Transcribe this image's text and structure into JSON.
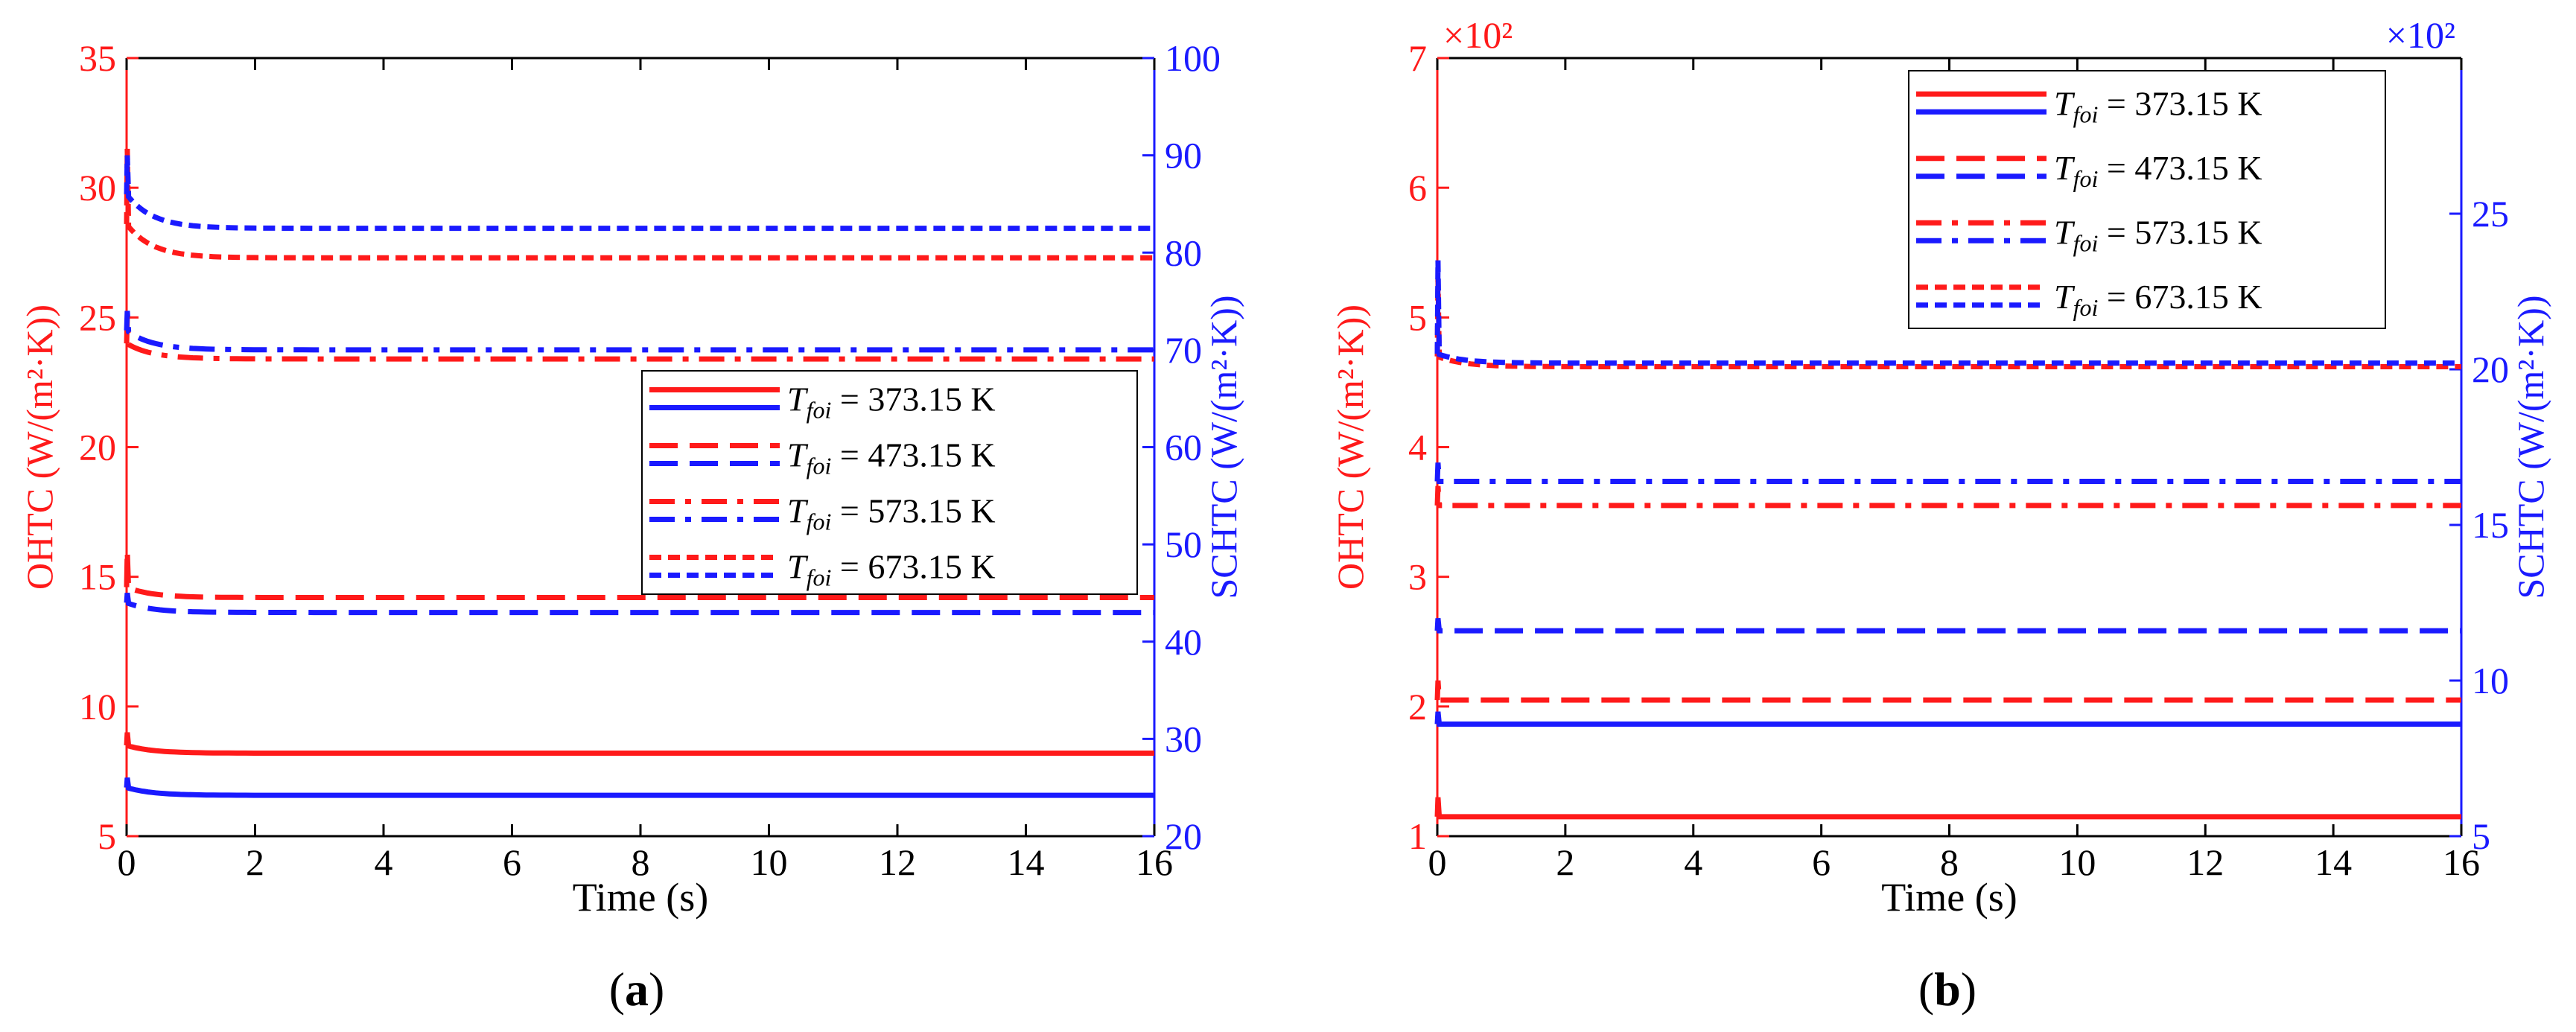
{
  "colors": {
    "red": "#ff1a1a",
    "blue": "#1a1aff",
    "axis": "#000000"
  },
  "chart_data": [
    {
      "type": "line",
      "panel_label": "a",
      "xlabel": "Time (s)",
      "ylabel_left": "OHTC (W/(m²·K))",
      "ylabel_right": "SCHTC (W/(m²·K))",
      "xlim": [
        0,
        16
      ],
      "ylim_left": [
        5,
        35
      ],
      "ylim_right": [
        20,
        100
      ],
      "x_ticks": [
        "0",
        "2",
        "4",
        "6",
        "8",
        "10",
        "12",
        "14",
        "16"
      ],
      "y_left_ticks": [
        "5",
        "10",
        "15",
        "20",
        "25",
        "30",
        "35"
      ],
      "y_right_ticks": [
        "20",
        "30",
        "40",
        "50",
        "60",
        "70",
        "80",
        "90",
        "100"
      ],
      "y_left_multiplier": "",
      "y_right_multiplier": "",
      "legend": {
        "placement": "center-right",
        "entries": [
          {
            "prefix": "T",
            "sub": "foi",
            "rest": " = 373.15 K",
            "dash": "solid"
          },
          {
            "prefix": "T",
            "sub": "foi",
            "rest": " = 473.15 K",
            "dash": "dash"
          },
          {
            "prefix": "T",
            "sub": "foi",
            "rest": " = 573.15 K",
            "dash": "dashdot"
          },
          {
            "prefix": "T",
            "sub": "foi",
            "rest": " = 673.15 K",
            "dash": "dot"
          }
        ]
      },
      "series": [
        {
          "legend_index": 0,
          "color": "red",
          "axis": "left",
          "dash": "solid",
          "start": 8.5,
          "steady": 8.2,
          "peak": 9.0
        },
        {
          "legend_index": 0,
          "color": "blue",
          "axis": "right",
          "dash": "solid",
          "start": 25,
          "steady": 24.2,
          "peak": 26
        },
        {
          "legend_index": 1,
          "color": "red",
          "axis": "left",
          "dash": "dash",
          "start": 14.6,
          "steady": 14.2,
          "peak": 16
        },
        {
          "legend_index": 1,
          "color": "blue",
          "axis": "right",
          "dash": "dash",
          "start": 44,
          "steady": 43,
          "peak": 45
        },
        {
          "legend_index": 2,
          "color": "red",
          "axis": "left",
          "dash": "dashdot",
          "start": 24.0,
          "steady": 23.4,
          "peak": 25
        },
        {
          "legend_index": 2,
          "color": "blue",
          "axis": "right",
          "dash": "dashdot",
          "start": 72,
          "steady": 70,
          "peak": 74
        },
        {
          "legend_index": 3,
          "color": "red",
          "axis": "left",
          "dash": "dot",
          "start": 28.6,
          "steady": 27.3,
          "peak": 31.5
        },
        {
          "legend_index": 3,
          "color": "blue",
          "axis": "right",
          "dash": "dot",
          "start": 86,
          "steady": 82.5,
          "peak": 90
        }
      ]
    },
    {
      "type": "line",
      "panel_label": "b",
      "xlabel": "Time (s)",
      "ylabel_left": "OHTC (W/(m²·K))",
      "ylabel_right": "SCHTC (W/(m²·K))",
      "xlim": [
        0,
        16
      ],
      "ylim_left": [
        1,
        7
      ],
      "ylim_right": [
        5,
        30
      ],
      "x_ticks": [
        "0",
        "2",
        "4",
        "6",
        "8",
        "10",
        "12",
        "14",
        "16"
      ],
      "y_left_ticks": [
        "1",
        "2",
        "3",
        "4",
        "5",
        "6",
        "7"
      ],
      "y_right_ticks": [
        "5",
        "10",
        "15",
        "20",
        "25"
      ],
      "y_left_multiplier": "×10²",
      "y_right_multiplier": "×10²",
      "legend": {
        "placement": "top-right",
        "entries": [
          {
            "prefix": "T",
            "sub": "foi",
            "rest": " = 373.15 K",
            "dash": "solid"
          },
          {
            "prefix": "T",
            "sub": "foi",
            "rest": " = 473.15 K",
            "dash": "dash"
          },
          {
            "prefix": "T",
            "sub": "foi",
            "rest": " = 573.15 K",
            "dash": "dashdot"
          },
          {
            "prefix": "T",
            "sub": "foi",
            "rest": " = 673.15 K",
            "dash": "dot"
          }
        ]
      },
      "series": [
        {
          "legend_index": 0,
          "color": "red",
          "axis": "left",
          "dash": "solid",
          "start": 1.15,
          "steady": 1.15,
          "peak": 1.3
        },
        {
          "legend_index": 0,
          "color": "blue",
          "axis": "right",
          "dash": "solid",
          "start": 8.6,
          "steady": 8.6,
          "peak": 9.0
        },
        {
          "legend_index": 1,
          "color": "red",
          "axis": "left",
          "dash": "dash",
          "start": 2.05,
          "steady": 2.05,
          "peak": 2.2
        },
        {
          "legend_index": 1,
          "color": "blue",
          "axis": "right",
          "dash": "dash",
          "start": 11.6,
          "steady": 11.6,
          "peak": 12.0
        },
        {
          "legend_index": 2,
          "color": "red",
          "axis": "left",
          "dash": "dashdot",
          "start": 3.55,
          "steady": 3.55,
          "peak": 3.7
        },
        {
          "legend_index": 2,
          "color": "blue",
          "axis": "right",
          "dash": "dashdot",
          "start": 16.4,
          "steady": 16.4,
          "peak": 17.0
        },
        {
          "legend_index": 3,
          "color": "red",
          "axis": "left",
          "dash": "dot",
          "start": 4.7,
          "steady": 4.62,
          "peak": 5.3
        },
        {
          "legend_index": 3,
          "color": "blue",
          "axis": "right",
          "dash": "dot",
          "start": 20.5,
          "steady": 20.2,
          "peak": 23.5
        }
      ]
    }
  ]
}
